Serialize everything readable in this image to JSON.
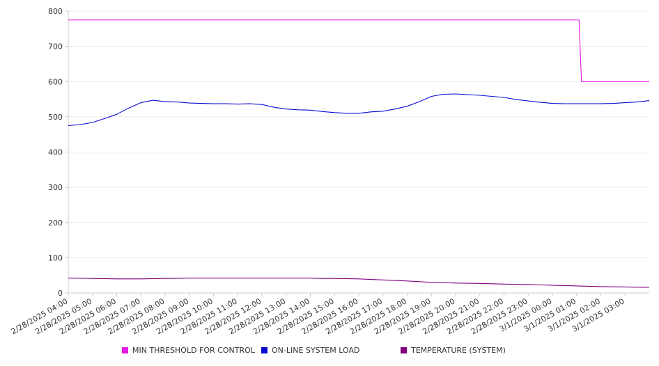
{
  "chart_data": {
    "type": "line",
    "title": "",
    "xlabel": "",
    "ylabel": "",
    "ylim": [
      0,
      800
    ],
    "yticks": [
      0,
      100,
      200,
      300,
      400,
      500,
      600,
      700,
      800
    ],
    "grid": "horizontal",
    "legend_position": "bottom",
    "x_range_hours": [
      0,
      24
    ],
    "x": [
      "2/28/2025 04:00",
      "2/28/2025 05:00",
      "2/28/2025 06:00",
      "2/28/2025 07:00",
      "2/28/2025 08:00",
      "2/28/2025 09:00",
      "2/28/2025 10:00",
      "2/28/2025 11:00",
      "2/28/2025 12:00",
      "2/28/2025 13:00",
      "2/28/2025 14:00",
      "2/28/2025 15:00",
      "2/28/2025 16:00",
      "2/28/2025 17:00",
      "2/28/2025 18:00",
      "2/28/2025 19:00",
      "2/28/2025 20:00",
      "2/28/2025 21:00",
      "2/28/2025 22:00",
      "2/28/2025 23:00",
      "3/1/2025 00:00",
      "3/1/2025 01:00",
      "3/1/2025 02:00",
      "3/1/2025 03:00"
    ],
    "series": [
      {
        "name": "MIN THRESHOLD FOR CONTROL",
        "color": "#e619e6",
        "points": [
          [
            0,
            775
          ],
          [
            21.1,
            775
          ],
          [
            21.2,
            600
          ],
          [
            24,
            600
          ]
        ]
      },
      {
        "name": "ON-LINE SYSTEM LOAD",
        "color": "#0a0ad2",
        "points": [
          [
            0,
            475
          ],
          [
            0.5,
            478
          ],
          [
            1,
            484
          ],
          [
            1.5,
            495
          ],
          [
            2,
            507
          ],
          [
            2.5,
            525
          ],
          [
            3,
            540
          ],
          [
            3.5,
            547
          ],
          [
            4,
            543
          ],
          [
            4.5,
            542
          ],
          [
            5,
            539
          ],
          [
            5.5,
            538
          ],
          [
            6,
            537
          ],
          [
            6.5,
            537
          ],
          [
            7,
            536
          ],
          [
            7.5,
            537
          ],
          [
            8,
            535
          ],
          [
            8.5,
            527
          ],
          [
            9,
            522
          ],
          [
            9.5,
            520
          ],
          [
            10,
            519
          ],
          [
            10.5,
            515
          ],
          [
            11,
            512
          ],
          [
            11.5,
            510
          ],
          [
            12,
            510
          ],
          [
            12.5,
            514
          ],
          [
            13,
            516
          ],
          [
            13.5,
            522
          ],
          [
            14,
            530
          ],
          [
            14.5,
            543
          ],
          [
            15,
            558
          ],
          [
            15.5,
            564
          ],
          [
            16,
            565
          ],
          [
            16.5,
            563
          ],
          [
            17,
            561
          ],
          [
            17.5,
            558
          ],
          [
            18,
            555
          ],
          [
            18.5,
            549
          ],
          [
            19,
            545
          ],
          [
            19.5,
            541
          ],
          [
            20,
            538
          ],
          [
            20.5,
            537
          ],
          [
            21,
            537
          ],
          [
            21.5,
            537
          ],
          [
            22,
            537
          ],
          [
            22.5,
            538
          ],
          [
            23,
            540
          ],
          [
            23.5,
            542
          ],
          [
            24,
            546
          ]
        ]
      },
      {
        "name": "TEMPERATURE (SYSTEM)",
        "color": "#800080",
        "points": [
          [
            0,
            42
          ],
          [
            1,
            41
          ],
          [
            2,
            40
          ],
          [
            3,
            40
          ],
          [
            4,
            41
          ],
          [
            5,
            42
          ],
          [
            6,
            42
          ],
          [
            7,
            42
          ],
          [
            8,
            42
          ],
          [
            9,
            42
          ],
          [
            10,
            42
          ],
          [
            10.5,
            41
          ],
          [
            11,
            41
          ],
          [
            12,
            40
          ],
          [
            13,
            37
          ],
          [
            14,
            34
          ],
          [
            15,
            30
          ],
          [
            16,
            28
          ],
          [
            17,
            27
          ],
          [
            18,
            25
          ],
          [
            19,
            24
          ],
          [
            20,
            22
          ],
          [
            21,
            20
          ],
          [
            22,
            18
          ],
          [
            23,
            17
          ],
          [
            24,
            16
          ]
        ]
      }
    ]
  }
}
